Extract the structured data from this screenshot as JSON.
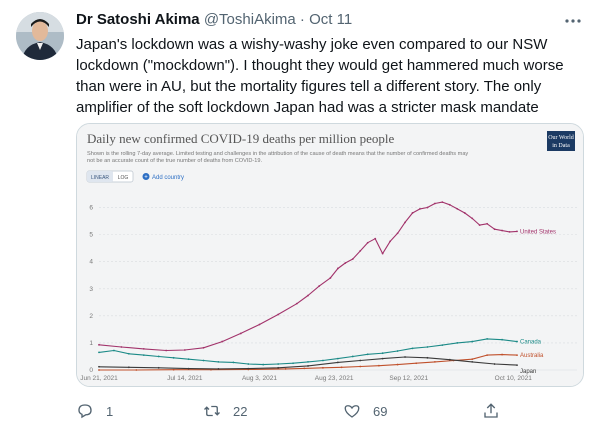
{
  "tweet": {
    "author_name": "Dr Satoshi Akima",
    "handle": "@ToshiAkima",
    "separator": "·",
    "date": "Oct 11",
    "more_icon": "more-dots-icon",
    "text_lines": [
      "Japan's lockdown was a wishy-washy joke even compared to our NSW",
      "lockdown (\"mockdown\"). I thought they would get hammered much worse",
      "than were in AU, but the mortality figures tell a different story. The only",
      "amplifier of the soft lockdown Japan had was a stricter mask mandate"
    ]
  },
  "actions": {
    "reply": {
      "icon": "reply-icon",
      "count": "1"
    },
    "retweet": {
      "icon": "retweet-icon",
      "count": "22"
    },
    "like": {
      "icon": "heart-icon",
      "count": "69"
    },
    "share": {
      "icon": "share-icon"
    }
  },
  "card": {
    "title": "Daily new confirmed COVID-19 deaths per million people",
    "subtitle_lines": [
      "Shown is the rolling 7-day average. Limited testing and challenges in the attribution of the cause of death means that the number of confirmed deaths may",
      "not be an accurate count of the true number of deaths from COVID-19."
    ],
    "logo_lines": [
      "Our World",
      "in Data"
    ],
    "toggle": {
      "linear": "LINEAR",
      "log": "LOG"
    },
    "add_country": "Add country",
    "colors": {
      "us": "#a2336b",
      "canada": "#1b8a87",
      "australia": "#c0502b",
      "japan": "#3a3a3a",
      "logo": "#1b3a63"
    }
  },
  "chart_data": {
    "type": "line",
    "title": "Daily new confirmed COVID-19 deaths per million people",
    "xlabel": "",
    "ylabel": "",
    "ylim": [
      0,
      6.5
    ],
    "yticks": [
      "0",
      "1",
      "2",
      "3",
      "4",
      "5",
      "6"
    ],
    "xticks": [
      "Jun 21, 2021",
      "Jul 14, 2021",
      "Aug 3, 2021",
      "Aug 23, 2021",
      "Sep 12, 2021",
      "Oct 10, 2021"
    ],
    "xtick_days": [
      0,
      23,
      43,
      63,
      83,
      111
    ],
    "grid": true,
    "series": [
      {
        "name": "United States",
        "color": "#a2336b",
        "x": [
          0,
          6,
          12,
          18,
          23,
          28,
          33,
          38,
          43,
          48,
          53,
          56,
          59,
          62,
          64,
          66,
          68,
          70,
          72,
          74,
          76,
          78,
          80,
          82,
          84,
          86,
          88,
          90,
          92,
          94,
          96,
          98,
          100,
          102,
          104,
          106,
          108,
          110,
          112
        ],
        "values": [
          0.93,
          0.85,
          0.78,
          0.72,
          0.74,
          0.82,
          1.05,
          1.35,
          1.68,
          2.05,
          2.45,
          2.75,
          3.1,
          3.4,
          3.75,
          3.95,
          4.1,
          4.4,
          4.7,
          4.85,
          4.3,
          4.75,
          5.05,
          5.45,
          5.8,
          5.95,
          6.0,
          6.15,
          6.2,
          6.1,
          5.95,
          5.8,
          5.6,
          5.35,
          5.4,
          5.2,
          5.15,
          5.1,
          5.12
        ]
      },
      {
        "name": "Canada",
        "color": "#1b8a87",
        "x": [
          0,
          4,
          8,
          12,
          16,
          20,
          24,
          28,
          32,
          36,
          40,
          44,
          48,
          52,
          56,
          60,
          64,
          68,
          72,
          76,
          80,
          84,
          88,
          92,
          96,
          100,
          104,
          108,
          112
        ],
        "values": [
          0.65,
          0.72,
          0.6,
          0.55,
          0.5,
          0.45,
          0.4,
          0.35,
          0.3,
          0.28,
          0.22,
          0.2,
          0.22,
          0.25,
          0.3,
          0.35,
          0.42,
          0.5,
          0.58,
          0.62,
          0.7,
          0.8,
          0.85,
          0.92,
          1.0,
          1.05,
          1.15,
          1.12,
          1.05
        ]
      },
      {
        "name": "Australia",
        "color": "#c0502b",
        "x": [
          0,
          10,
          20,
          30,
          40,
          50,
          55,
          60,
          65,
          70,
          75,
          80,
          85,
          90,
          95,
          100,
          104,
          108,
          112
        ],
        "values": [
          0.0,
          0.0,
          0.01,
          0.01,
          0.02,
          0.04,
          0.06,
          0.08,
          0.1,
          0.13,
          0.16,
          0.2,
          0.25,
          0.3,
          0.35,
          0.4,
          0.55,
          0.57,
          0.55
        ]
      },
      {
        "name": "Japan",
        "color": "#3a3a3a",
        "x": [
          0,
          8,
          16,
          24,
          32,
          40,
          48,
          56,
          64,
          70,
          76,
          82,
          88,
          94,
          100,
          106,
          112
        ],
        "values": [
          0.12,
          0.1,
          0.08,
          0.05,
          0.04,
          0.05,
          0.08,
          0.15,
          0.28,
          0.35,
          0.42,
          0.48,
          0.45,
          0.38,
          0.3,
          0.22,
          0.18
        ]
      }
    ]
  }
}
